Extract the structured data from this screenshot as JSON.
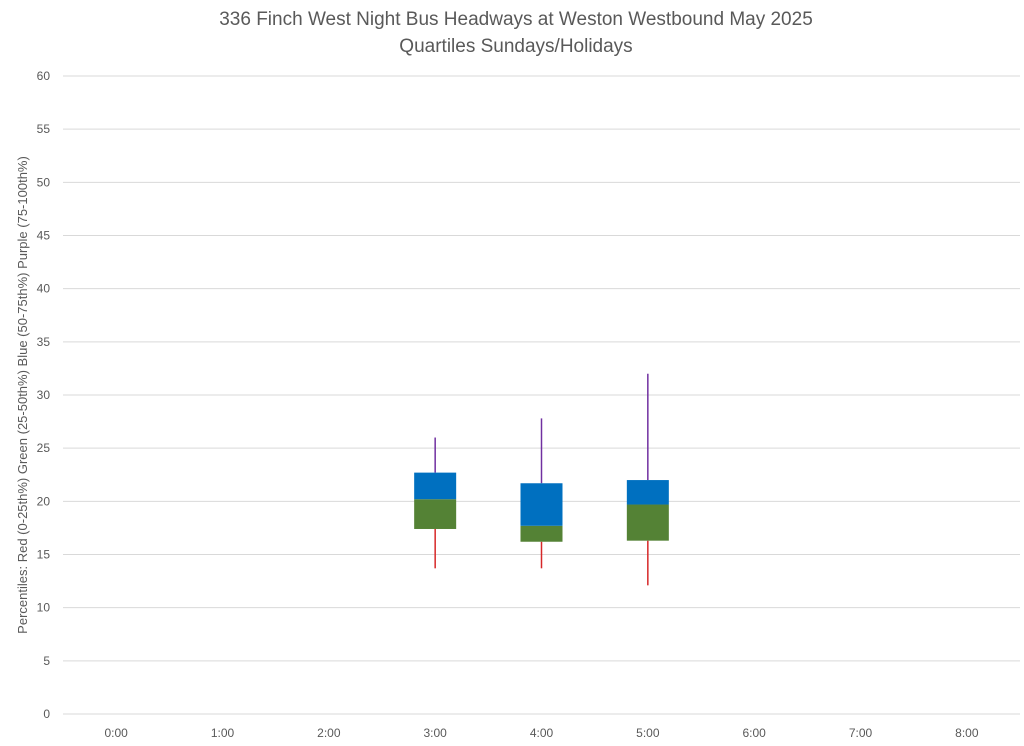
{
  "chart_data": {
    "type": "box",
    "title": "336 Finch West Night Bus Headways at Weston Westbound May 2025",
    "subtitle": "Quartiles Sundays/Holidays",
    "ylabel": "Percentiles:  Red (0-25th%)  Green (25-50th%)  Blue (50-75th%)  Purple (75-100th%)",
    "xlabel": "",
    "ylim": [
      0,
      60
    ],
    "yticks": [
      0,
      5,
      10,
      15,
      20,
      25,
      30,
      35,
      40,
      45,
      50,
      55,
      60
    ],
    "categories": [
      "0:00",
      "1:00",
      "2:00",
      "3:00",
      "4:00",
      "5:00",
      "6:00",
      "7:00",
      "8:00"
    ],
    "grid": true,
    "colors": {
      "min_to_q1": "#d62728",
      "q1_to_median": "#548235",
      "median_to_q3": "#0070c0",
      "q3_to_max": "#7030a0",
      "grid": "#d9d9d9",
      "text": "#595959"
    },
    "boxes": [
      {
        "category": "3:00",
        "min": 13.7,
        "q1": 17.4,
        "median": 20.2,
        "q3": 22.7,
        "max": 26.0
      },
      {
        "category": "4:00",
        "min": 13.7,
        "q1": 16.2,
        "median": 17.7,
        "q3": 21.7,
        "max": 27.8
      },
      {
        "category": "5:00",
        "min": 12.1,
        "q1": 16.3,
        "median": 19.7,
        "q3": 22.0,
        "max": 32.0
      }
    ]
  }
}
